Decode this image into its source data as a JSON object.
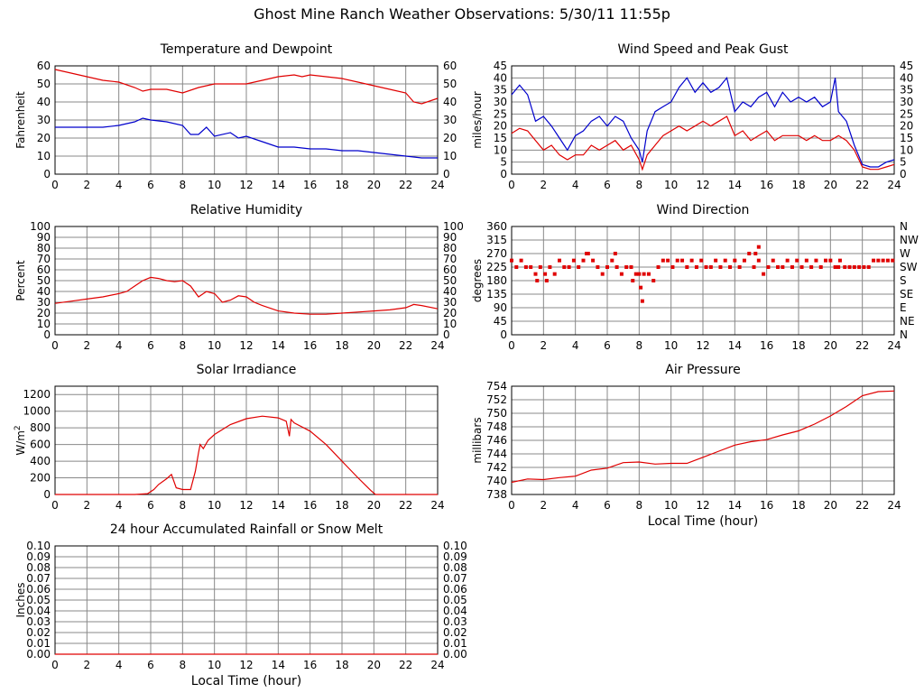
{
  "page": {
    "title": "Ghost Mine Ranch Weather Observations: 5/30/11 11:55p"
  },
  "colors": {
    "red": "#e00000",
    "blue": "#0000cc",
    "grid": "#888888"
  },
  "chart_data": [
    {
      "id": "temp",
      "type": "line",
      "title": "Temperature and Dewpoint",
      "ylabel": "Fahrenheit",
      "xlabel": "",
      "xlim": [
        0,
        24
      ],
      "ylim": [
        0,
        60
      ],
      "xticks": [
        0,
        2,
        4,
        6,
        8,
        10,
        12,
        14,
        16,
        18,
        20,
        22,
        24
      ],
      "yticks": [
        0,
        10,
        20,
        30,
        40,
        50,
        60
      ],
      "ytick_labels": [
        "0",
        "10",
        "20",
        "30",
        "40",
        "50",
        "60"
      ],
      "right_ticks": true,
      "series": [
        {
          "name": "Temperature",
          "color": "#e00000",
          "x": [
            0,
            1,
            2,
            3,
            4,
            5,
            5.5,
            6,
            7,
            8,
            9,
            10,
            11,
            12,
            13,
            14,
            15,
            15.5,
            16,
            17,
            18,
            19,
            20,
            21,
            22,
            22.5,
            23,
            24
          ],
          "y": [
            58,
            56,
            54,
            52,
            51,
            48,
            46,
            47,
            47,
            45,
            48,
            50,
            50,
            50,
            52,
            54,
            55,
            54,
            55,
            54,
            53,
            51,
            49,
            47,
            45,
            40,
            39,
            42
          ]
        },
        {
          "name": "Dewpoint",
          "color": "#0000cc",
          "x": [
            0,
            1,
            2,
            3,
            4,
            5,
            5.5,
            6,
            7,
            8,
            8.5,
            9,
            9.5,
            10,
            11,
            11.5,
            12,
            13,
            14,
            15,
            16,
            17,
            18,
            19,
            20,
            21,
            22,
            23,
            24
          ],
          "y": [
            26,
            26,
            26,
            26,
            27,
            29,
            31,
            30,
            29,
            27,
            22,
            22,
            26,
            21,
            23,
            20,
            21,
            18,
            15,
            15,
            14,
            14,
            13,
            13,
            12,
            11,
            10,
            9,
            9
          ]
        }
      ]
    },
    {
      "id": "wind",
      "type": "line",
      "title": "Wind Speed and Peak Gust",
      "ylabel": "miles/hour",
      "xlabel": "",
      "xlim": [
        0,
        24
      ],
      "ylim": [
        0,
        45
      ],
      "xticks": [
        0,
        2,
        4,
        6,
        8,
        10,
        12,
        14,
        16,
        18,
        20,
        22,
        24
      ],
      "yticks": [
        0,
        5,
        10,
        15,
        20,
        25,
        30,
        35,
        40,
        45
      ],
      "ytick_labels": [
        "0",
        "5",
        "10",
        "15",
        "20",
        "25",
        "30",
        "35",
        "40",
        "45"
      ],
      "right_ticks": true,
      "series": [
        {
          "name": "Peak Gust",
          "color": "#0000cc",
          "x": [
            0,
            0.5,
            1,
            1.5,
            2,
            2.5,
            3,
            3.5,
            4,
            4.5,
            5,
            5.5,
            6,
            6.5,
            7,
            7.5,
            8,
            8.2,
            8.5,
            9,
            9.5,
            10,
            10.5,
            11,
            11.5,
            12,
            12.5,
            13,
            13.5,
            14,
            14.5,
            15,
            15.5,
            16,
            16.5,
            17,
            17.5,
            18,
            18.5,
            19,
            19.5,
            20,
            20.3,
            20.5,
            21,
            21.5,
            22,
            22.5,
            23,
            23.5,
            24
          ],
          "y": [
            33,
            37,
            33,
            22,
            24,
            20,
            15,
            10,
            16,
            18,
            22,
            24,
            20,
            24,
            22,
            15,
            10,
            5,
            18,
            26,
            28,
            30,
            36,
            40,
            34,
            38,
            34,
            36,
            40,
            26,
            30,
            28,
            32,
            34,
            28,
            34,
            30,
            32,
            30,
            32,
            28,
            30,
            40,
            26,
            22,
            12,
            4,
            3,
            3,
            5,
            6
          ]
        },
        {
          "name": "Wind Speed",
          "color": "#e00000",
          "x": [
            0,
            0.5,
            1,
            1.5,
            2,
            2.5,
            3,
            3.5,
            4,
            4.5,
            5,
            5.5,
            6,
            6.5,
            7,
            7.5,
            8,
            8.2,
            8.5,
            9,
            9.5,
            10,
            10.5,
            11,
            11.5,
            12,
            12.5,
            13,
            13.5,
            14,
            14.5,
            15,
            15.5,
            16,
            16.5,
            17,
            17.5,
            18,
            18.5,
            19,
            19.5,
            20,
            20.5,
            21,
            21.5,
            22,
            22.5,
            23,
            23.5,
            24
          ],
          "y": [
            17,
            19,
            18,
            14,
            10,
            12,
            8,
            6,
            8,
            8,
            12,
            10,
            12,
            14,
            10,
            12,
            6,
            2,
            8,
            12,
            16,
            18,
            20,
            18,
            20,
            22,
            20,
            22,
            24,
            16,
            18,
            14,
            16,
            18,
            14,
            16,
            16,
            16,
            14,
            16,
            14,
            14,
            16,
            14,
            10,
            3,
            2,
            2,
            3,
            4
          ]
        }
      ]
    },
    {
      "id": "rh",
      "type": "line",
      "title": "Relative Humidity",
      "ylabel": "Percent",
      "xlabel": "",
      "xlim": [
        0,
        24
      ],
      "ylim": [
        0,
        100
      ],
      "xticks": [
        0,
        2,
        4,
        6,
        8,
        10,
        12,
        14,
        16,
        18,
        20,
        22,
        24
      ],
      "yticks": [
        0,
        10,
        20,
        30,
        40,
        50,
        60,
        70,
        80,
        90,
        100
      ],
      "ytick_labels": [
        "0",
        "10",
        "20",
        "30",
        "40",
        "50",
        "60",
        "70",
        "80",
        "90",
        "100"
      ],
      "right_ticks": true,
      "series": [
        {
          "name": "Relative Humidity",
          "color": "#e00000",
          "x": [
            0,
            1,
            2,
            3,
            4,
            4.5,
            5,
            5.5,
            6,
            6.5,
            7,
            7.5,
            8,
            8.5,
            9,
            9.5,
            10,
            10.5,
            11,
            11.5,
            12,
            12.5,
            13,
            14,
            15,
            16,
            17,
            18,
            19,
            20,
            21,
            22,
            22.5,
            23,
            24
          ],
          "y": [
            29,
            31,
            33,
            35,
            38,
            40,
            45,
            50,
            53,
            52,
            50,
            49,
            50,
            45,
            35,
            40,
            38,
            30,
            32,
            36,
            35,
            30,
            27,
            22,
            20,
            19,
            19,
            20,
            21,
            22,
            23,
            25,
            28,
            27,
            24
          ]
        }
      ]
    },
    {
      "id": "wdir",
      "type": "scatter",
      "title": "Wind Direction",
      "ylabel": "degrees",
      "xlabel": "",
      "xlim": [
        0,
        24
      ],
      "ylim": [
        0,
        360
      ],
      "xticks": [
        0,
        2,
        4,
        6,
        8,
        10,
        12,
        14,
        16,
        18,
        20,
        22,
        24
      ],
      "yticks": [
        0,
        45,
        90,
        135,
        180,
        225,
        270,
        315,
        360
      ],
      "ytick_labels": [
        "0",
        "45",
        "90",
        "135",
        "180",
        "225",
        "270",
        "315",
        "360"
      ],
      "right_labels": [
        "N",
        "NE",
        "E",
        "SE",
        "S",
        "SW",
        "W",
        "NW",
        "N"
      ],
      "series": [
        {
          "name": "Wind Direction",
          "color": "#e00000",
          "x": [
            0,
            0.3,
            0.6,
            0.9,
            1.2,
            1.5,
            1.8,
            2.1,
            2.4,
            2.7,
            3,
            3.3,
            3.6,
            3.9,
            4.2,
            4.5,
            4.8,
            5.1,
            5.4,
            5.7,
            6,
            6.3,
            6.6,
            6.9,
            7.2,
            7.5,
            7.8,
            8,
            8.1,
            8.3,
            8.6,
            8.9,
            9.2,
            9.5,
            9.8,
            10.1,
            10.4,
            10.7,
            11,
            11.3,
            11.6,
            11.9,
            12.2,
            12.5,
            12.8,
            13.1,
            13.4,
            13.7,
            14,
            14.3,
            14.6,
            14.9,
            15.2,
            15.5,
            15.8,
            16.1,
            16.4,
            16.7,
            17,
            17.3,
            17.6,
            17.9,
            18.2,
            18.5,
            18.8,
            19.1,
            19.4,
            19.7,
            20,
            20.3,
            20.6,
            20.9,
            21.2,
            21.5,
            21.8,
            22.1,
            22.4,
            22.7,
            23,
            23.3,
            23.6,
            23.9,
            1.6,
            2.2,
            4.7,
            6.5,
            7.6,
            8.2,
            15.5,
            15.3,
            20.5
          ],
          "y": [
            247,
            225,
            247,
            225,
            225,
            202,
            225,
            202,
            225,
            202,
            247,
            225,
            225,
            247,
            225,
            247,
            270,
            247,
            225,
            202,
            225,
            247,
            225,
            202,
            225,
            225,
            202,
            202,
            157,
            202,
            202,
            180,
            225,
            247,
            247,
            225,
            247,
            247,
            225,
            247,
            225,
            247,
            225,
            225,
            247,
            225,
            247,
            225,
            247,
            225,
            247,
            270,
            225,
            247,
            202,
            225,
            247,
            225,
            225,
            247,
            225,
            247,
            225,
            247,
            225,
            247,
            225,
            247,
            247,
            225,
            247,
            225,
            225,
            225,
            225,
            225,
            225,
            247,
            247,
            247,
            247,
            247,
            180,
            180,
            270,
            270,
            180,
            112,
            292,
            270,
            225
          ]
        }
      ]
    },
    {
      "id": "solar",
      "type": "line",
      "title": "Solar Irradiance",
      "ylabel": "W/m2",
      "xlabel": "",
      "xlim": [
        0,
        24
      ],
      "ylim": [
        0,
        1300
      ],
      "xticks": [
        0,
        2,
        4,
        6,
        8,
        10,
        12,
        14,
        16,
        18,
        20,
        22,
        24
      ],
      "yticks": [
        0,
        200,
        400,
        600,
        800,
        1000,
        1200
      ],
      "ytick_labels": [
        "0",
        "200",
        "400",
        "600",
        "800",
        "1000",
        "1200"
      ],
      "right_ticks": false,
      "series": [
        {
          "name": "Solar Irradiance",
          "color": "#e00000",
          "x": [
            0,
            5,
            5.8,
            6.2,
            6.5,
            7,
            7.3,
            7.6,
            8,
            8.5,
            8.8,
            9,
            9.1,
            9.3,
            9.6,
            10,
            11,
            12,
            13,
            14,
            14.5,
            14.7,
            14.8,
            15,
            16,
            17,
            18,
            19,
            19.8,
            20.1,
            21,
            24
          ],
          "y": [
            0,
            0,
            10,
            60,
            120,
            190,
            240,
            80,
            60,
            60,
            280,
            500,
            600,
            550,
            650,
            720,
            840,
            910,
            940,
            920,
            880,
            700,
            900,
            860,
            760,
            600,
            400,
            200,
            50,
            0,
            0,
            0
          ]
        }
      ]
    },
    {
      "id": "pressure",
      "type": "line",
      "title": "Air Pressure",
      "ylabel": "millibars",
      "xlabel": "Local Time (hour)",
      "xlim": [
        0,
        24
      ],
      "ylim": [
        738,
        754
      ],
      "xticks": [
        0,
        2,
        4,
        6,
        8,
        10,
        12,
        14,
        16,
        18,
        20,
        22,
        24
      ],
      "yticks": [
        738,
        740,
        742,
        744,
        746,
        748,
        750,
        752,
        754
      ],
      "ytick_labels": [
        "738",
        "740",
        "742",
        "744",
        "746",
        "748",
        "750",
        "752",
        "754"
      ],
      "right_ticks": false,
      "series": [
        {
          "name": "Air Pressure",
          "color": "#e00000",
          "x": [
            0,
            1,
            2,
            3,
            4,
            5,
            6,
            7,
            8,
            9,
            10,
            11,
            12,
            13,
            14,
            15,
            16,
            17,
            18,
            19,
            20,
            21,
            22,
            23,
            24
          ],
          "y": [
            739.8,
            740.3,
            740.2,
            740.5,
            740.7,
            741.6,
            741.9,
            742.7,
            742.8,
            742.5,
            742.6,
            742.6,
            743.5,
            744.4,
            745.3,
            745.8,
            746.1,
            746.8,
            747.4,
            748.4,
            749.6,
            751,
            752.6,
            753.2,
            753.3
          ]
        }
      ]
    },
    {
      "id": "rain",
      "type": "line",
      "title": "24 hour Accumulated Rainfall or Snow Melt",
      "ylabel": "Inches",
      "xlabel": "Local Time (hour)",
      "xlim": [
        0,
        24
      ],
      "ylim": [
        0,
        0.1
      ],
      "xticks": [
        0,
        2,
        4,
        6,
        8,
        10,
        12,
        14,
        16,
        18,
        20,
        22,
        24
      ],
      "yticks": [
        0,
        0.01,
        0.02,
        0.03,
        0.04,
        0.05,
        0.06,
        0.07,
        0.08,
        0.09,
        0.1
      ],
      "ytick_labels": [
        "0.00",
        "0.01",
        "0.02",
        "0.03",
        "0.04",
        "0.05",
        "0.06",
        "0.07",
        "0.08",
        "0.09",
        "0.10"
      ],
      "right_ticks": true,
      "series": [
        {
          "name": "Rainfall",
          "color": "#e00000",
          "x": [
            0,
            24
          ],
          "y": [
            0,
            0
          ]
        }
      ]
    }
  ]
}
